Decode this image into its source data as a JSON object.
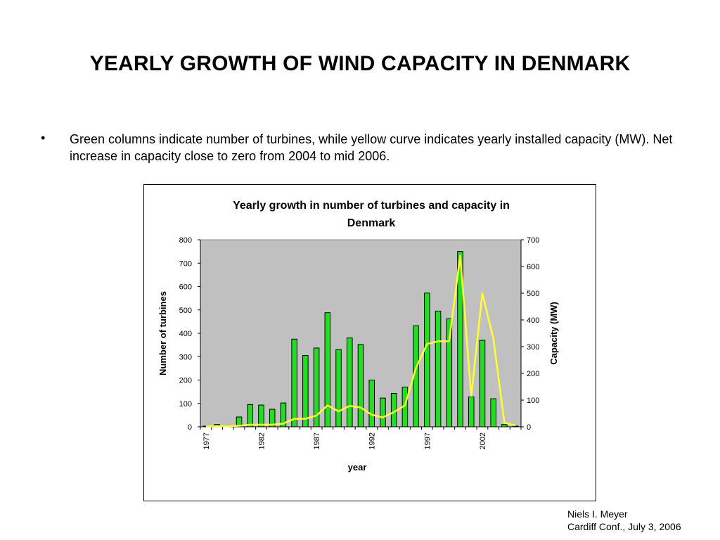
{
  "slide": {
    "title": "YEARLY GROWTH OF WIND CAPACITY IN DENMARK",
    "bullet": "•",
    "bullet_text": "Green columns indicate number of turbines, while yellow curve indicates yearly installed capacity (MW). Net increase in capacity close to zero from 2004 to mid 2006.",
    "credit_name": "Niels I. Meyer",
    "credit_conf": "Cardiff Conf., July 3, 2006"
  },
  "colors": {
    "bars": "#22dd22",
    "line": "#ffff33",
    "plot_bg": "#c0c0c0"
  },
  "chart_data": {
    "type": "bar",
    "title": "Yearly growth in number of turbines and capacity in Denmark",
    "xlabel": "year",
    "ylabel": "Number of turbines",
    "y2label": "Capacity (MW)",
    "ylim": [
      0,
      800
    ],
    "y2lim": [
      0,
      700
    ],
    "yticks": [
      0,
      100,
      200,
      300,
      400,
      500,
      600,
      700,
      800
    ],
    "y2ticks": [
      0,
      100,
      200,
      300,
      400,
      500,
      600,
      700
    ],
    "xtick_labels": [
      "1977",
      "1982",
      "1987",
      "1992",
      "1997",
      "2002"
    ],
    "grid": false,
    "categories": [
      1977,
      1978,
      1979,
      1980,
      1981,
      1982,
      1983,
      1984,
      1985,
      1986,
      1987,
      1988,
      1989,
      1990,
      1991,
      1992,
      1993,
      1994,
      1995,
      1996,
      1997,
      1998,
      1999,
      2000,
      2001,
      2002,
      2003,
      2004,
      2005
    ],
    "series": [
      {
        "kind": "bar",
        "axis": "left",
        "values": [
          3,
          10,
          5,
          42,
          95,
          93,
          75,
          102,
          375,
          305,
          337,
          488,
          330,
          380,
          352,
          200,
          123,
          143,
          170,
          432,
          572,
          495,
          462,
          750,
          128,
          370,
          120,
          10,
          3
        ]
      },
      {
        "kind": "line",
        "axis": "right",
        "values": [
          1,
          2,
          2,
          4,
          8,
          8,
          8,
          12,
          30,
          30,
          42,
          80,
          58,
          78,
          72,
          45,
          35,
          55,
          80,
          220,
          310,
          320,
          320,
          640,
          115,
          500,
          330,
          15,
          5
        ]
      }
    ]
  }
}
